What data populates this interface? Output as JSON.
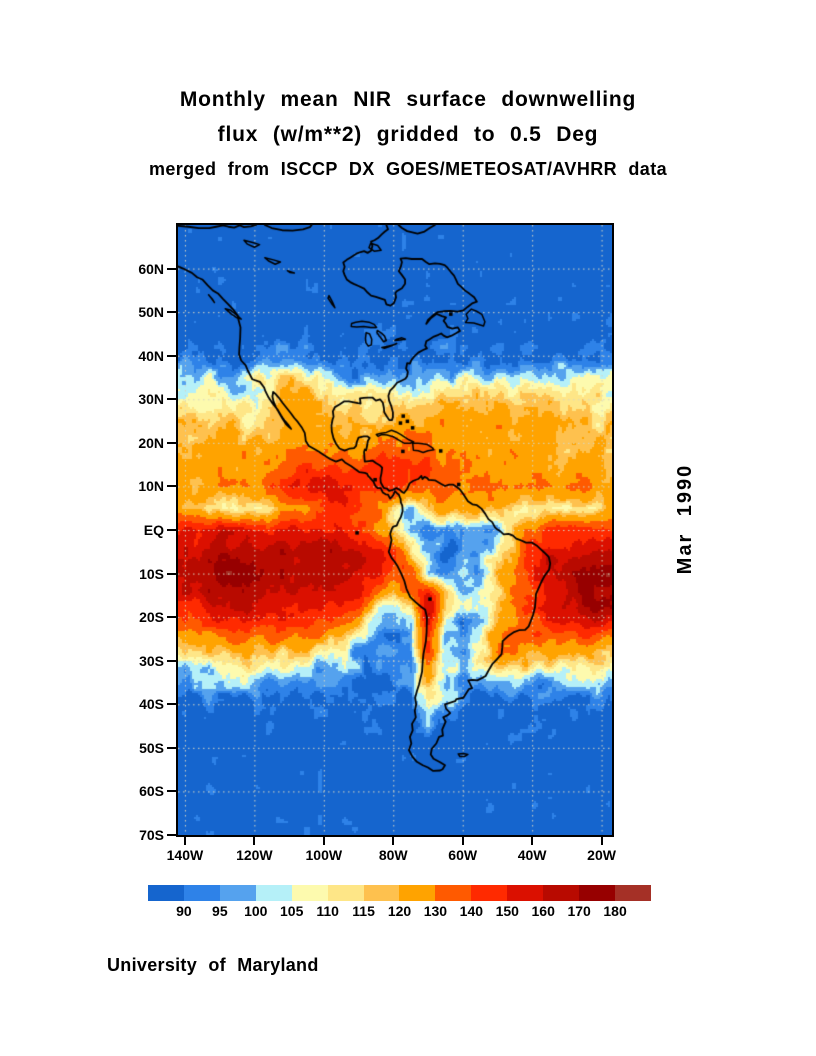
{
  "header": {
    "title_line1": "Monthly mean NIR surface downwelling",
    "title_line2": "flux (w/m**2) gridded to 0.5 Deg",
    "subtitle": "merged from ISCCP DX GOES/METEOSAT/AVHRR data"
  },
  "side_label": "Mar 1990",
  "footer": {
    "credit": "University of Maryland"
  },
  "chart_data": {
    "type": "heatmap",
    "title": "Monthly mean NIR surface downwelling flux (w/m**2) gridded to 0.5 Deg",
    "subtitle": "merged from ISCCP DX GOES/METEOSAT/AVHRR data",
    "period": "Mar 1990",
    "units": "w/m**2",
    "region": "Americas",
    "grid_on": true,
    "x_axis": {
      "tick_labels": [
        "140W",
        "120W",
        "100W",
        "80W",
        "60W",
        "40W",
        "20W"
      ],
      "tick_lons": [
        -140,
        -120,
        -100,
        -80,
        -60,
        -40,
        -20
      ],
      "lon_range": [
        -142,
        -17
      ]
    },
    "y_axis": {
      "tick_labels": [
        "60N",
        "50N",
        "40N",
        "30N",
        "20N",
        "10N",
        "EQ",
        "10S",
        "20S",
        "30S",
        "40S",
        "50S",
        "60S",
        "70S"
      ],
      "tick_lats": [
        60,
        50,
        40,
        30,
        20,
        10,
        0,
        -10,
        -20,
        -30,
        -40,
        -50,
        -60,
        -70
      ],
      "lat_range": [
        -70,
        70
      ]
    },
    "grid_lines": {
      "lat_step_deg": 10,
      "lon_step_deg": 20,
      "style": "dotted",
      "color": "#D7D7C3"
    },
    "colorbar": {
      "boundary_labels": [
        "90",
        "95",
        "100",
        "105",
        "110",
        "115",
        "120",
        "130",
        "140",
        "150",
        "160",
        "170",
        "180"
      ],
      "levels": [
        90,
        95,
        100,
        105,
        110,
        115,
        120,
        130,
        140,
        150,
        160,
        170,
        180
      ],
      "colors": [
        "#1565CE",
        "#2E82E8",
        "#55A2EE",
        "#B5F0F8",
        "#FDFAAE",
        "#FEE687",
        "#FEC14E",
        "#FFA300",
        "#FF5A00",
        "#FF2A00",
        "#DB1000",
        "#B80A00",
        "#970000",
        "#A53026"
      ]
    },
    "field_grid": {
      "note": "Estimated NIR downwelling flux (w/m**2) read from figure colors, 5-degree grid",
      "lon_start": -140,
      "lon_step": 5,
      "lat_start": 70,
      "lat_step": -5,
      "values": [
        [
          84,
          84,
          84,
          84,
          84,
          84,
          84,
          84,
          84,
          84,
          84,
          84,
          84,
          84,
          84,
          84,
          84,
          84,
          84,
          84,
          84,
          84,
          84,
          84,
          84,
          84
        ],
        [
          84,
          84,
          84,
          84,
          84,
          84,
          84,
          84,
          84,
          84,
          84,
          84,
          84,
          84,
          84,
          84,
          84,
          84,
          84,
          84,
          84,
          84,
          84,
          84,
          84,
          84
        ],
        [
          84,
          84,
          84,
          84,
          84,
          84,
          84,
          84,
          84,
          84,
          84,
          84,
          84,
          84,
          84,
          84,
          84,
          84,
          84,
          84,
          84,
          84,
          84,
          84,
          84,
          84
        ],
        [
          84,
          84,
          84,
          84,
          84,
          84,
          84,
          84,
          84,
          84,
          84,
          84,
          84,
          84,
          84,
          84,
          84,
          84,
          84,
          84,
          84,
          84,
          84,
          84,
          84,
          84
        ],
        [
          85,
          85,
          85,
          85,
          85,
          85,
          85,
          85,
          85,
          85,
          85,
          85,
          85,
          85,
          85,
          85,
          85,
          85,
          85,
          85,
          85,
          85,
          85,
          85,
          85,
          85
        ],
        [
          86,
          86,
          86,
          86,
          86,
          86,
          86,
          86,
          86,
          86,
          86,
          86,
          86,
          86,
          86,
          86,
          86,
          86,
          86,
          86,
          86,
          86,
          86,
          86,
          86,
          86
        ],
        [
          88,
          88,
          88,
          87,
          90,
          93,
          93,
          91,
          88,
          87,
          86,
          86,
          86,
          87,
          87,
          88,
          88,
          88,
          88,
          88,
          88,
          88,
          88,
          88,
          88,
          88
        ],
        [
          104,
          103,
          102,
          100,
          104,
          112,
          114,
          112,
          104,
          96,
          93,
          92,
          92,
          96,
          100,
          102,
          103,
          104,
          105,
          105,
          105,
          105,
          104,
          104,
          103,
          103
        ],
        [
          110,
          110,
          109,
          107,
          106,
          114,
          122,
          124,
          118,
          112,
          110,
          110,
          112,
          114,
          115,
          116,
          116,
          116,
          116,
          116,
          115,
          114,
          113,
          112,
          112,
          111
        ],
        [
          116,
          116,
          115,
          114,
          112,
          112,
          124,
          128,
          122,
          120,
          118,
          118,
          120,
          122,
          124,
          124,
          124,
          123,
          122,
          121,
          120,
          119,
          118,
          118,
          117,
          116
        ],
        [
          120,
          121,
          122,
          122,
          122,
          124,
          128,
          130,
          126,
          124,
          122,
          126,
          130,
          132,
          132,
          130,
          128,
          126,
          125,
          124,
          123,
          122,
          121,
          120,
          119,
          118
        ],
        [
          122,
          123,
          124,
          126,
          128,
          132,
          138,
          142,
          140,
          136,
          132,
          142,
          146,
          142,
          138,
          132,
          128,
          127,
          126,
          125,
          124,
          123,
          122,
          121,
          120,
          119
        ],
        [
          122,
          123,
          124,
          125,
          128,
          140,
          152,
          156,
          155,
          150,
          142,
          140,
          140,
          140,
          138,
          136,
          132,
          130,
          128,
          128,
          130,
          131,
          132,
          132,
          130,
          128
        ],
        [
          114,
          113,
          112,
          112,
          113,
          115,
          120,
          130,
          140,
          145,
          142,
          130,
          115,
          98,
          120,
          128,
          126,
          122,
          118,
          116,
          114,
          111,
          104,
          110,
          116,
          118
        ],
        [
          148,
          150,
          156,
          150,
          148,
          148,
          150,
          152,
          148,
          145,
          142,
          135,
          112,
          96,
          94,
          98,
          95,
          98,
          100,
          118,
          132,
          138,
          142,
          143,
          142,
          140
        ],
        [
          156,
          160,
          163,
          165,
          164,
          166,
          166,
          164,
          164,
          164,
          158,
          150,
          150,
          110,
          100,
          90,
          92,
          96,
          104,
          125,
          148,
          155,
          158,
          162,
          166,
          164
        ],
        [
          162,
          168,
          174,
          176,
          174,
          172,
          168,
          164,
          166,
          168,
          162,
          155,
          140,
          145,
          105,
          96,
          95,
          100,
          115,
          135,
          150,
          158,
          165,
          172,
          176,
          172
        ],
        [
          155,
          160,
          165,
          166,
          164,
          162,
          160,
          158,
          158,
          156,
          150,
          125,
          112,
          125,
          158,
          115,
          105,
          108,
          118,
          130,
          142,
          152,
          162,
          170,
          172,
          168
        ],
        [
          140,
          144,
          148,
          152,
          154,
          152,
          150,
          148,
          146,
          142,
          126,
          100,
          94,
          96,
          160,
          108,
          96,
          98,
          122,
          132,
          140,
          150,
          158,
          164,
          164,
          160
        ],
        [
          122,
          124,
          127,
          130,
          131,
          130,
          128,
          126,
          122,
          115,
          102,
          94,
          92,
          94,
          148,
          98,
          95,
          102,
          130,
          133,
          134,
          135,
          136,
          136,
          134,
          132
        ],
        [
          108,
          109,
          110,
          112,
          112,
          111,
          110,
          108,
          104,
          99,
          95,
          93,
          92,
          93,
          136,
          102,
          100,
          108,
          126,
          122,
          116,
          114,
          113,
          114,
          114,
          112
        ],
        [
          96,
          97,
          98,
          99,
          100,
          100,
          99,
          98,
          96,
          94,
          92,
          90,
          89,
          90,
          124,
          104,
          98,
          95,
          98,
          100,
          97,
          96,
          96,
          97,
          98,
          97
        ],
        [
          88,
          88,
          88,
          89,
          89,
          89,
          89,
          89,
          88,
          88,
          88,
          87,
          87,
          87,
          111,
          96,
          92,
          88,
          87,
          87,
          87,
          87,
          87,
          87,
          87,
          87
        ],
        [
          85,
          85,
          85,
          85,
          85,
          85,
          85,
          85,
          85,
          85,
          85,
          85,
          85,
          85,
          97,
          90,
          87,
          85,
          85,
          85,
          85,
          85,
          85,
          85,
          85,
          85
        ],
        [
          84,
          84,
          84,
          84,
          84,
          84,
          84,
          84,
          84,
          84,
          84,
          84,
          84,
          86,
          88,
          85,
          84,
          84,
          84,
          84,
          84,
          84,
          84,
          84,
          84,
          84
        ],
        [
          84,
          84,
          84,
          84,
          84,
          84,
          84,
          84,
          84,
          84,
          84,
          84,
          84,
          84,
          84,
          84,
          84,
          84,
          84,
          84,
          84,
          84,
          84,
          84,
          84,
          84
        ],
        [
          84,
          84,
          84,
          84,
          84,
          84,
          84,
          84,
          84,
          84,
          84,
          84,
          84,
          84,
          84,
          84,
          84,
          84,
          84,
          84,
          84,
          84,
          84,
          84,
          84,
          84
        ],
        [
          84,
          84,
          84,
          84,
          84,
          84,
          84,
          84,
          84,
          84,
          84,
          84,
          84,
          84,
          84,
          84,
          84,
          84,
          84,
          84,
          84,
          84,
          84,
          84,
          84,
          84
        ],
        [
          84,
          84,
          84,
          84,
          84,
          84,
          84,
          84,
          84,
          84,
          84,
          84,
          84,
          84,
          84,
          84,
          84,
          84,
          84,
          84,
          84,
          84,
          84,
          84,
          84,
          84
        ]
      ]
    }
  }
}
